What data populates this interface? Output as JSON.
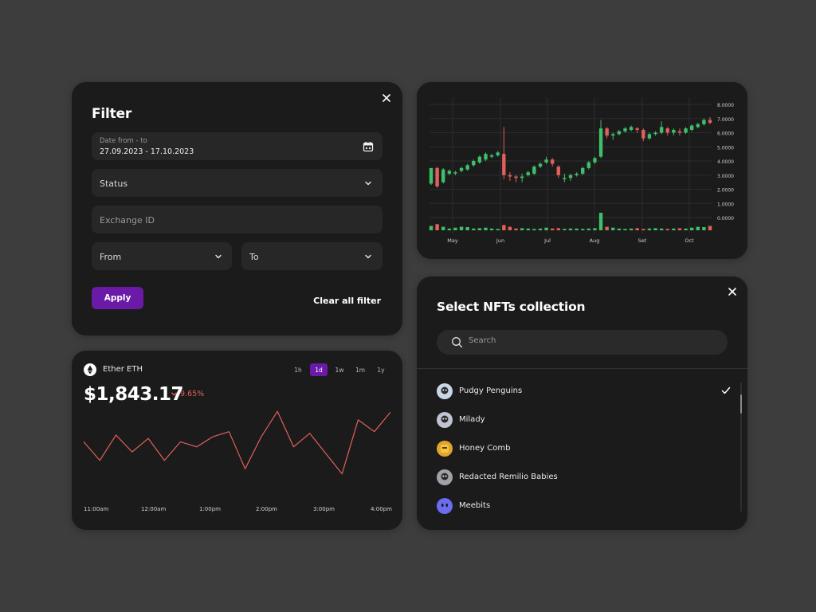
{
  "filter": {
    "title": "Filter",
    "date": {
      "small_label": "Date from - to",
      "value": "27.09.2023 - 17.10.2023"
    },
    "status": {
      "label": "Status"
    },
    "exchange": {
      "placeholder": "Exchange ID"
    },
    "from": {
      "label": "From"
    },
    "to": {
      "label": "To"
    },
    "apply_label": "Apply",
    "clear_label": "Clear all filter"
  },
  "candles": {
    "y_ticks": [
      "8.0000",
      "7.0000",
      "6.0000",
      "5.0000",
      "4.0000",
      "3.0000",
      "2.0000",
      "1.0000",
      "0.0000"
    ],
    "x_ticks": [
      "May",
      "Jun",
      "Jul",
      "Aug",
      "Set",
      "Oct"
    ],
    "colors": {
      "up": "#3fbf6a",
      "down": "#e0605a"
    },
    "data": [
      [
        2.4,
        3.5,
        2.3,
        3.5
      ],
      [
        3.5,
        2.2,
        2.1,
        3.6
      ],
      [
        2.5,
        3.4,
        2.4,
        3.5
      ],
      [
        3.1,
        3.3,
        3.0,
        3.4
      ],
      [
        3.2,
        3.2,
        3.0,
        3.3
      ],
      [
        3.3,
        3.5,
        3.2,
        3.6
      ],
      [
        3.4,
        3.7,
        3.3,
        3.8
      ],
      [
        3.7,
        4.0,
        3.6,
        4.1
      ],
      [
        3.9,
        4.3,
        3.8,
        4.4
      ],
      [
        4.1,
        4.5,
        4.0,
        4.6
      ],
      [
        4.3,
        4.4,
        4.2,
        4.5
      ],
      [
        4.4,
        4.6,
        4.3,
        4.7
      ],
      [
        4.5,
        3.0,
        2.7,
        6.4
      ],
      [
        3.0,
        2.9,
        2.6,
        3.2
      ],
      [
        2.9,
        2.8,
        2.5,
        3.0
      ],
      [
        2.8,
        2.9,
        2.5,
        3.1
      ],
      [
        3.0,
        3.2,
        2.9,
        3.3
      ],
      [
        3.1,
        3.6,
        3.0,
        3.7
      ],
      [
        3.6,
        3.8,
        3.5,
        3.9
      ],
      [
        3.9,
        4.1,
        3.8,
        4.3
      ],
      [
        4.1,
        3.8,
        3.6,
        4.2
      ],
      [
        3.6,
        3.0,
        2.8,
        3.7
      ],
      [
        2.8,
        2.8,
        2.5,
        3.1
      ],
      [
        2.8,
        3.0,
        2.6,
        3.1
      ],
      [
        3.0,
        3.1,
        2.9,
        3.2
      ],
      [
        3.1,
        3.5,
        3.0,
        3.6
      ],
      [
        3.5,
        3.9,
        3.4,
        4.0
      ],
      [
        3.9,
        4.2,
        3.8,
        4.3
      ],
      [
        4.3,
        6.3,
        4.2,
        6.9
      ],
      [
        6.3,
        5.8,
        5.6,
        6.4
      ],
      [
        5.8,
        5.9,
        5.5,
        6.0
      ],
      [
        5.9,
        6.1,
        5.8,
        6.2
      ],
      [
        6.1,
        6.3,
        6.0,
        6.4
      ],
      [
        6.2,
        6.4,
        6.1,
        6.5
      ],
      [
        6.3,
        6.2,
        6.0,
        6.4
      ],
      [
        6.2,
        5.6,
        5.4,
        6.3
      ],
      [
        5.6,
        5.9,
        5.5,
        6.0
      ],
      [
        5.9,
        6.0,
        5.8,
        6.1
      ],
      [
        6.0,
        6.4,
        5.9,
        6.8
      ],
      [
        6.3,
        6.0,
        5.8,
        6.4
      ],
      [
        6.0,
        6.2,
        5.8,
        6.3
      ],
      [
        6.1,
        6.0,
        5.8,
        6.3
      ],
      [
        6.0,
        6.3,
        5.9,
        6.4
      ],
      [
        6.2,
        6.5,
        6.1,
        6.6
      ],
      [
        6.4,
        6.6,
        6.3,
        6.7
      ],
      [
        6.6,
        6.9,
        6.5,
        7.0
      ],
      [
        6.9,
        6.7,
        6.6,
        7.1
      ]
    ],
    "volumes": [
      0.25,
      0.35,
      0.2,
      0.1,
      0.15,
      0.2,
      0.18,
      0.1,
      0.12,
      0.15,
      0.1,
      0.08,
      0.3,
      0.2,
      0.1,
      0.12,
      0.1,
      0.08,
      0.1,
      0.15,
      0.1,
      0.12,
      0.08,
      0.1,
      0.1,
      0.08,
      0.1,
      0.12,
      1.0,
      0.2,
      0.15,
      0.1,
      0.08,
      0.1,
      0.12,
      0.08,
      0.1,
      0.12,
      0.1,
      0.08,
      0.1,
      0.12,
      0.1,
      0.15,
      0.2,
      0.18,
      0.25
    ]
  },
  "eth": {
    "name": "Ether ETH",
    "price": "$1,843.17",
    "change": "9.65%",
    "timeframes": [
      "1h",
      "1d",
      "1w",
      "1m",
      "1y"
    ],
    "active_timeframe": "1d",
    "x_labels": [
      "11:00am",
      "12:00am",
      "1:00pm",
      "2:00pm",
      "3:00pm",
      "4:00pm"
    ],
    "line_color": "#e0605a",
    "series": [
      60,
      38,
      68,
      48,
      64,
      38,
      60,
      54,
      66,
      72,
      28,
      66,
      96,
      54,
      70,
      46,
      22,
      86,
      72,
      95
    ]
  },
  "nft": {
    "title": "Select NFTs collection",
    "search_placeholder": "Search",
    "items": [
      {
        "label": "Pudgy Penguins",
        "selected": true,
        "color": "#c9d6e6"
      },
      {
        "label": "Milady",
        "selected": false,
        "color": "#bfc4d1"
      },
      {
        "label": "Honey Comb",
        "selected": false,
        "color": "#e0a52c"
      },
      {
        "label": "Redacted Remilio Babies",
        "selected": false,
        "color": "#9fa3a8"
      },
      {
        "label": "Meebits",
        "selected": false,
        "color": "#6b6cf0"
      }
    ]
  }
}
